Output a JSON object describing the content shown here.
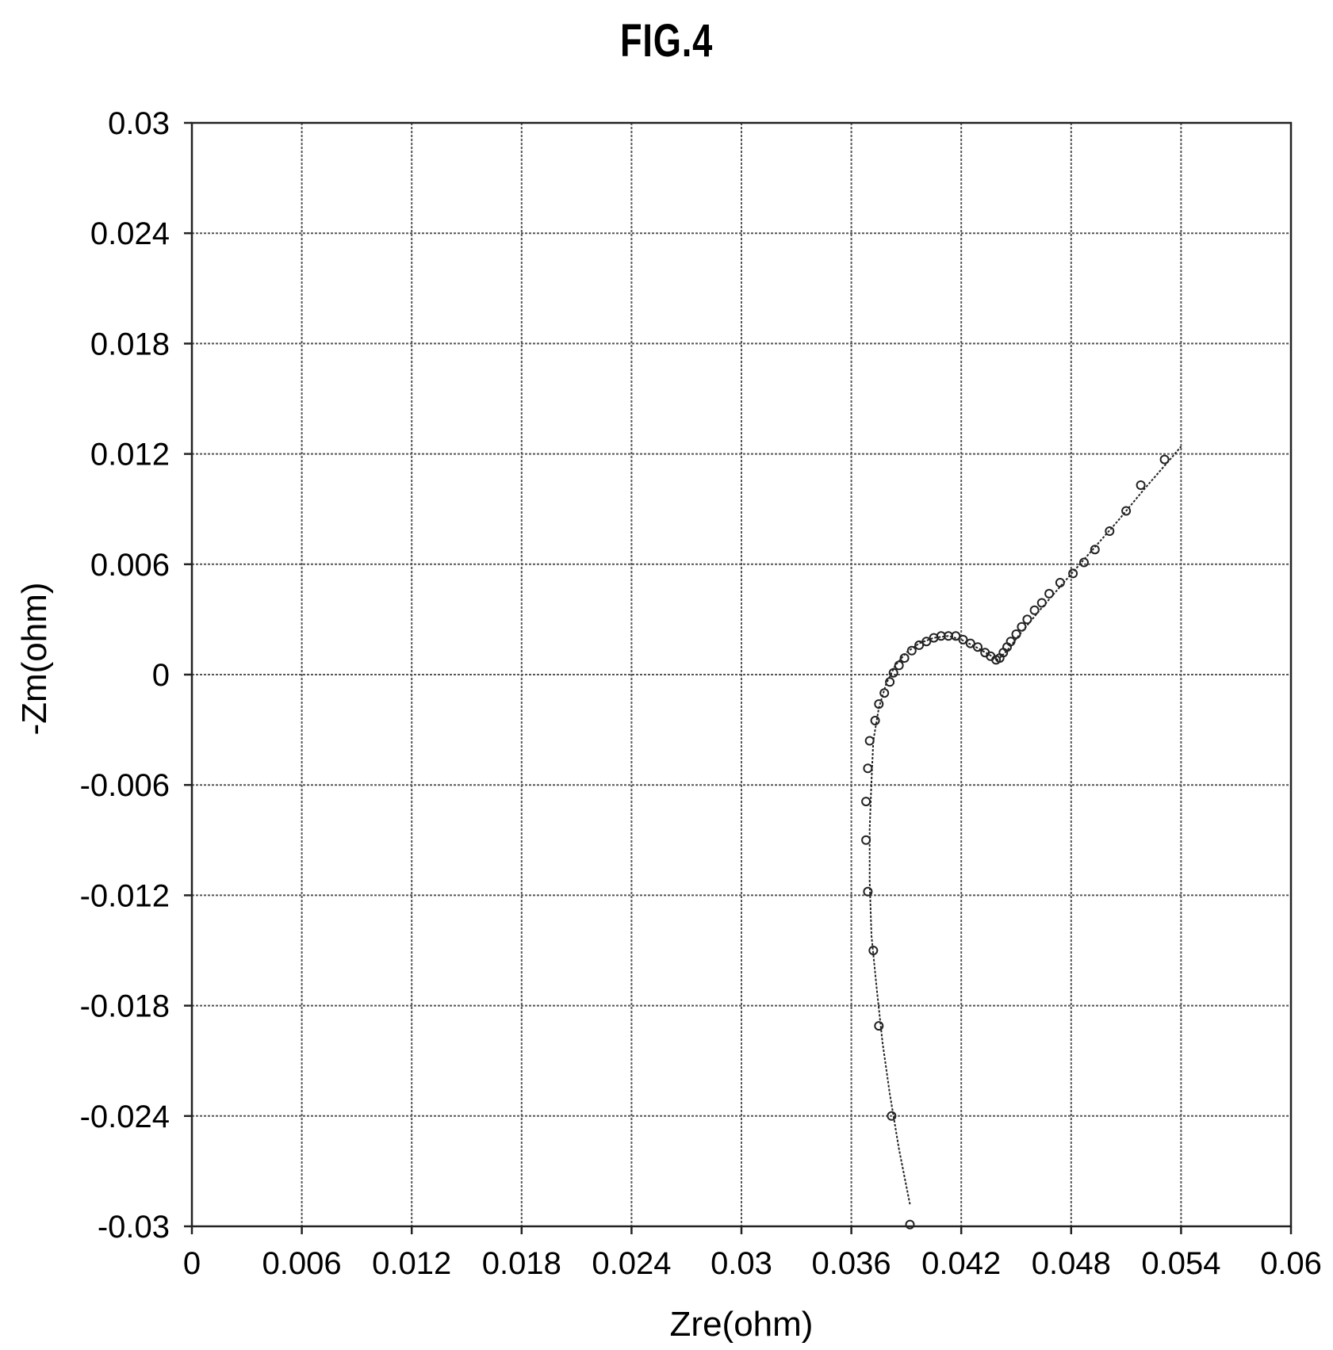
{
  "figure": {
    "title": "FIG.4"
  },
  "chart_data": {
    "type": "scatter",
    "title": "FIG.4",
    "xlabel": "Zre(ohm)",
    "ylabel": "-Zm(ohm)",
    "xlim": [
      0,
      0.06
    ],
    "ylim": [
      -0.03,
      0.03
    ],
    "grid": true,
    "x_ticks": [
      "0",
      "0.006",
      "0.012",
      "0.018",
      "0.024",
      "0.03",
      "0.036",
      "0.042",
      "0.048",
      "0.054",
      "0.06"
    ],
    "y_ticks": [
      "0.03",
      "0.024",
      "0.018",
      "0.012",
      "0.006",
      "0",
      "-0.006",
      "-0.012",
      "-0.018",
      "-0.024",
      "-0.03"
    ],
    "series": [
      {
        "kind": "markers",
        "points": [
          [
            0.0392,
            -0.0299
          ],
          [
            0.0382,
            -0.024
          ],
          [
            0.0375,
            -0.0191
          ],
          [
            0.0372,
            -0.015
          ],
          [
            0.0369,
            -0.0118
          ],
          [
            0.0368,
            -0.009
          ],
          [
            0.0368,
            -0.0069
          ],
          [
            0.0369,
            -0.0051
          ],
          [
            0.037,
            -0.0036
          ],
          [
            0.0373,
            -0.0025
          ],
          [
            0.0375,
            -0.0016
          ],
          [
            0.0378,
            -0.001
          ],
          [
            0.0381,
            -0.0004
          ],
          [
            0.0383,
            0.0001
          ],
          [
            0.0386,
            0.0005
          ],
          [
            0.0389,
            0.0009
          ],
          [
            0.0393,
            0.0013
          ],
          [
            0.0397,
            0.0016
          ],
          [
            0.0401,
            0.0018
          ],
          [
            0.0405,
            0.002
          ],
          [
            0.0409,
            0.0021
          ],
          [
            0.0413,
            0.0021
          ],
          [
            0.0417,
            0.0021
          ],
          [
            0.0421,
            0.0019
          ],
          [
            0.0425,
            0.0017
          ],
          [
            0.0429,
            0.0015
          ],
          [
            0.0433,
            0.0012
          ],
          [
            0.0436,
            0.001
          ],
          [
            0.0439,
            0.0008
          ],
          [
            0.0441,
            0.0009
          ],
          [
            0.0443,
            0.0012
          ],
          [
            0.0445,
            0.0015
          ],
          [
            0.0447,
            0.0018
          ],
          [
            0.045,
            0.0022
          ],
          [
            0.0453,
            0.0026
          ],
          [
            0.0456,
            0.003
          ],
          [
            0.046,
            0.0035
          ],
          [
            0.0464,
            0.0039
          ],
          [
            0.0468,
            0.0044
          ],
          [
            0.0474,
            0.005
          ],
          [
            0.0481,
            0.0055
          ],
          [
            0.0487,
            0.0061
          ],
          [
            0.0493,
            0.0068
          ],
          [
            0.0501,
            0.0078
          ],
          [
            0.051,
            0.0089
          ],
          [
            0.0518,
            0.0103
          ],
          [
            0.0531,
            0.0117
          ]
        ]
      },
      {
        "kind": "fit-line",
        "points": [
          [
            0.0392,
            -0.0288
          ],
          [
            0.0386,
            -0.0258
          ],
          [
            0.0381,
            -0.0228
          ],
          [
            0.0377,
            -0.02
          ],
          [
            0.0374,
            -0.0172
          ],
          [
            0.0371,
            -0.0142
          ],
          [
            0.037,
            -0.0112
          ],
          [
            0.037,
            -0.0084
          ],
          [
            0.0371,
            -0.0058
          ],
          [
            0.0372,
            -0.0036
          ],
          [
            0.0375,
            -0.0018
          ],
          [
            0.0379,
            -0.0005
          ],
          [
            0.0384,
            0.0005
          ],
          [
            0.039,
            0.0012
          ],
          [
            0.0397,
            0.0017
          ],
          [
            0.0405,
            0.002
          ],
          [
            0.0413,
            0.0021
          ],
          [
            0.042,
            0.0019
          ],
          [
            0.0428,
            0.0015
          ],
          [
            0.0435,
            0.0011
          ],
          [
            0.044,
            0.0008
          ],
          [
            0.0445,
            0.0013
          ],
          [
            0.0452,
            0.0022
          ],
          [
            0.0462,
            0.0034
          ],
          [
            0.0475,
            0.0049
          ],
          [
            0.049,
            0.0066
          ],
          [
            0.0505,
            0.0083
          ],
          [
            0.052,
            0.0101
          ],
          [
            0.0534,
            0.0117
          ],
          [
            0.054,
            0.0124
          ]
        ]
      }
    ]
  }
}
